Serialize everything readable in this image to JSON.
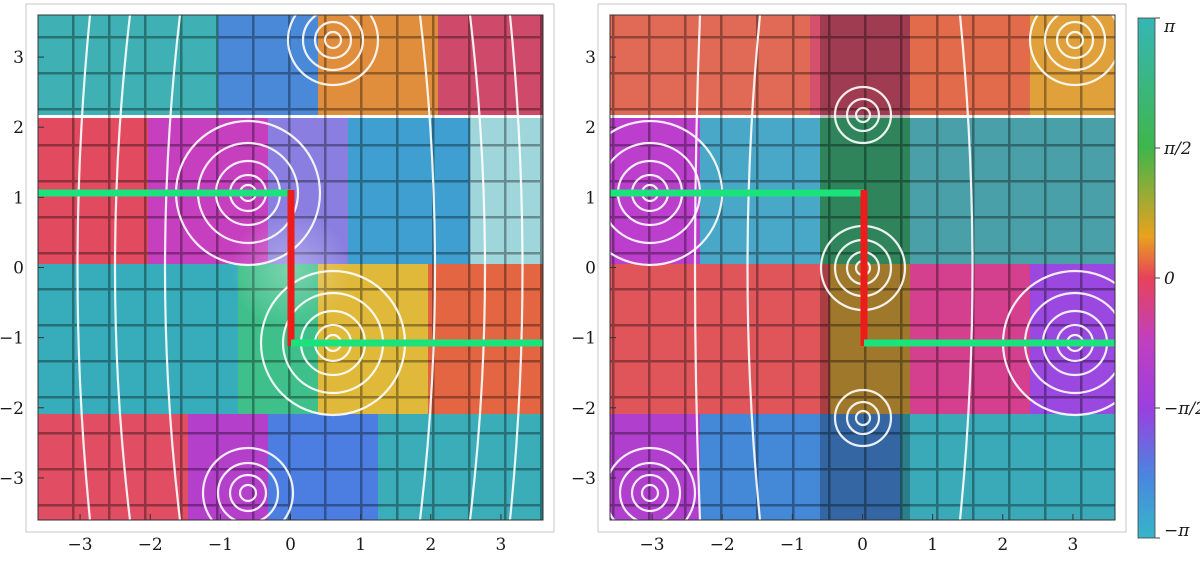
{
  "panels": [
    {
      "id": "left",
      "x_ticks": [
        "−3",
        "−2",
        "−1",
        "0",
        "1",
        "2",
        "3"
      ],
      "y_ticks": [
        "3",
        "2",
        "1",
        "0",
        "−1",
        "−2",
        "−3"
      ]
    },
    {
      "id": "right",
      "x_ticks": [
        "−3",
        "−2",
        "−1",
        "0",
        "1",
        "2",
        "3"
      ],
      "y_ticks": [
        "3",
        "2",
        "1",
        "0",
        "−1",
        "−2",
        "−3"
      ]
    }
  ],
  "colorbar": {
    "labels": [
      "π",
      "π/2",
      "0",
      "−π/2",
      "−π"
    ],
    "colors": [
      "#36b6b6",
      "#3fb64c",
      "#e8a21e",
      "#e8425a",
      "#9b3fe0",
      "#4a86e0",
      "#36b6c8"
    ]
  },
  "annotations": {
    "branch_cut_horizontal_color": "#19e37a",
    "branch_cut_vertical_color": "#ee1b1b"
  },
  "chart_data": [
    {
      "type": "heatmap",
      "xlim": [
        -3.6,
        3.6
      ],
      "ylim": [
        -3.6,
        3.6
      ],
      "x_ticks": [
        -3,
        -2,
        -1,
        0,
        1,
        2,
        3
      ],
      "y_ticks": [
        -3,
        -2,
        -1,
        0,
        1,
        2,
        3
      ],
      "zeros_or_poles": [
        [
          0.6,
          3.2
        ],
        [
          -0.6,
          1.1
        ],
        [
          0.6,
          -1.1
        ],
        [
          -0.6,
          -3.2
        ]
      ],
      "branch_cuts": [
        {
          "from": [
            -3.6,
            1.1
          ],
          "to": [
            0,
            1.1
          ],
          "color": "green"
        },
        {
          "from": [
            0,
            1.1
          ],
          "to": [
            0,
            -1.1
          ],
          "color": "red"
        },
        {
          "from": [
            0,
            -1.1
          ],
          "to": [
            3.6,
            -1.1
          ],
          "color": "green"
        }
      ]
    },
    {
      "type": "heatmap",
      "xlim": [
        -3.6,
        3.6
      ],
      "ylim": [
        -3.6,
        3.6
      ],
      "x_ticks": [
        -3,
        -2,
        -1,
        0,
        1,
        2,
        3
      ],
      "y_ticks": [
        -3,
        -2,
        -1,
        0,
        1,
        2,
        3
      ],
      "zeros_or_poles": [
        [
          3.0,
          3.2
        ],
        [
          0,
          2.1
        ],
        [
          -3.0,
          1.1
        ],
        [
          0,
          0
        ],
        [
          3.0,
          -1.1
        ],
        [
          0,
          -2.1
        ],
        [
          -3.0,
          -3.2
        ]
      ],
      "branch_cuts": [
        {
          "from": [
            -3.6,
            1.1
          ],
          "to": [
            0,
            1.1
          ],
          "color": "green"
        },
        {
          "from": [
            0,
            1.1
          ],
          "to": [
            0,
            -1.1
          ],
          "color": "red"
        },
        {
          "from": [
            0,
            -1.1
          ],
          "to": [
            3.6,
            -1.1
          ],
          "color": "green"
        }
      ]
    }
  ]
}
